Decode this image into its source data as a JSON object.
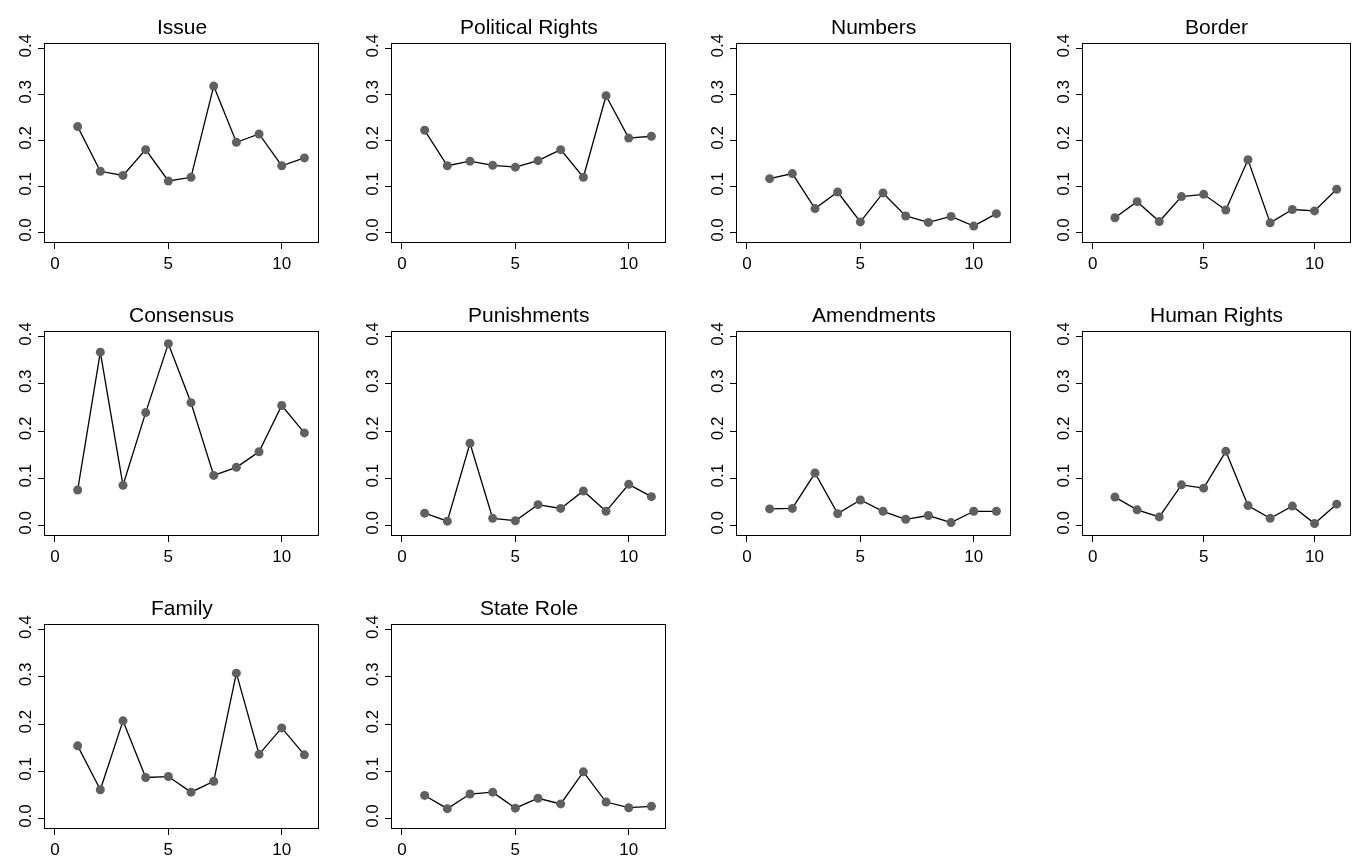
{
  "chart_data": [
    {
      "type": "line",
      "title": "Issue",
      "x": [
        1,
        2,
        3,
        4,
        5,
        6,
        7,
        8,
        9,
        10,
        11
      ],
      "values": [
        0.23,
        0.133,
        0.124,
        0.18,
        0.112,
        0.12,
        0.318,
        0.196,
        0.214,
        0.145,
        0.162
      ],
      "color": "#606060",
      "marker": "circle",
      "xlim": [
        -0.44,
        11.6
      ],
      "ylim": [
        -0.02,
        0.41
      ],
      "xticks": [
        0,
        5,
        10
      ],
      "yticks": [
        {
          "value": 0,
          "label": "0.0"
        },
        {
          "value": 0.1,
          "label": "0.1"
        },
        {
          "value": 0.2,
          "label": "0.2"
        },
        {
          "value": 0.3,
          "label": "0.3"
        },
        {
          "value": 0.4,
          "label": "0.4"
        }
      ]
    },
    {
      "type": "line",
      "title": "Political Rights",
      "x": [
        1,
        2,
        3,
        4,
        5,
        6,
        7,
        8,
        9,
        10,
        11
      ],
      "values": [
        0.222,
        0.145,
        0.155,
        0.146,
        0.142,
        0.156,
        0.18,
        0.12,
        0.297,
        0.205,
        0.209
      ],
      "color": "#606060",
      "marker": "circle",
      "xlim": [
        -0.44,
        11.6
      ],
      "ylim": [
        -0.02,
        0.41
      ],
      "xticks": [
        0,
        5,
        10
      ],
      "yticks": [
        {
          "value": 0,
          "label": "0.0"
        },
        {
          "value": 0.1,
          "label": "0.1"
        },
        {
          "value": 0.2,
          "label": "0.2"
        },
        {
          "value": 0.3,
          "label": "0.3"
        },
        {
          "value": 0.4,
          "label": "0.4"
        }
      ]
    },
    {
      "type": "line",
      "title": "Numbers",
      "x": [
        1,
        2,
        3,
        4,
        5,
        6,
        7,
        8,
        9,
        10,
        11
      ],
      "values": [
        0.117,
        0.128,
        0.052,
        0.088,
        0.023,
        0.086,
        0.036,
        0.022,
        0.035,
        0.014,
        0.041
      ],
      "color": "#606060",
      "marker": "circle",
      "xlim": [
        -0.44,
        11.6
      ],
      "ylim": [
        -0.02,
        0.41
      ],
      "xticks": [
        0,
        5,
        10
      ],
      "yticks": [
        {
          "value": 0,
          "label": "0.0"
        },
        {
          "value": 0.1,
          "label": "0.1"
        },
        {
          "value": 0.2,
          "label": "0.2"
        },
        {
          "value": 0.3,
          "label": "0.3"
        },
        {
          "value": 0.4,
          "label": "0.4"
        }
      ]
    },
    {
      "type": "line",
      "title": "Border",
      "x": [
        1,
        2,
        3,
        4,
        5,
        6,
        7,
        8,
        9,
        10,
        11
      ],
      "values": [
        0.032,
        0.067,
        0.024,
        0.078,
        0.083,
        0.049,
        0.158,
        0.021,
        0.05,
        0.047,
        0.094
      ],
      "color": "#606060",
      "marker": "circle",
      "xlim": [
        -0.44,
        11.6
      ],
      "ylim": [
        -0.02,
        0.41
      ],
      "xticks": [
        0,
        5,
        10
      ],
      "yticks": [
        {
          "value": 0,
          "label": "0.0"
        },
        {
          "value": 0.1,
          "label": "0.1"
        },
        {
          "value": 0.2,
          "label": "0.2"
        },
        {
          "value": 0.3,
          "label": "0.3"
        },
        {
          "value": 0.4,
          "label": "0.4"
        }
      ]
    },
    {
      "type": "line",
      "title": "Consensus",
      "x": [
        1,
        2,
        3,
        4,
        5,
        6,
        7,
        8,
        9,
        10,
        11
      ],
      "values": [
        0.075,
        0.367,
        0.085,
        0.239,
        0.385,
        0.26,
        0.106,
        0.123,
        0.156,
        0.254,
        0.196
      ],
      "color": "#606060",
      "marker": "circle",
      "xlim": [
        -0.44,
        11.6
      ],
      "ylim": [
        -0.02,
        0.41
      ],
      "xticks": [
        0,
        5,
        10
      ],
      "yticks": [
        {
          "value": 0,
          "label": "0.0"
        },
        {
          "value": 0.1,
          "label": "0.1"
        },
        {
          "value": 0.2,
          "label": "0.2"
        },
        {
          "value": 0.3,
          "label": "0.3"
        },
        {
          "value": 0.4,
          "label": "0.4"
        }
      ]
    },
    {
      "type": "line",
      "title": "Punishments",
      "x": [
        1,
        2,
        3,
        4,
        5,
        6,
        7,
        8,
        9,
        10,
        11
      ],
      "values": [
        0.026,
        0.009,
        0.174,
        0.015,
        0.01,
        0.044,
        0.036,
        0.073,
        0.03,
        0.087,
        0.061
      ],
      "color": "#606060",
      "marker": "circle",
      "xlim": [
        -0.44,
        11.6
      ],
      "ylim": [
        -0.02,
        0.41
      ],
      "xticks": [
        0,
        5,
        10
      ],
      "yticks": [
        {
          "value": 0,
          "label": "0.0"
        },
        {
          "value": 0.1,
          "label": "0.1"
        },
        {
          "value": 0.2,
          "label": "0.2"
        },
        {
          "value": 0.3,
          "label": "0.3"
        },
        {
          "value": 0.4,
          "label": "0.4"
        }
      ]
    },
    {
      "type": "line",
      "title": "Amendments",
      "x": [
        1,
        2,
        3,
        4,
        5,
        6,
        7,
        8,
        9,
        10,
        11
      ],
      "values": [
        0.035,
        0.036,
        0.111,
        0.025,
        0.054,
        0.03,
        0.013,
        0.021,
        0.006,
        0.03,
        0.03
      ],
      "color": "#606060",
      "marker": "circle",
      "xlim": [
        -0.44,
        11.6
      ],
      "ylim": [
        -0.02,
        0.41
      ],
      "xticks": [
        0,
        5,
        10
      ],
      "yticks": [
        {
          "value": 0,
          "label": "0.0"
        },
        {
          "value": 0.1,
          "label": "0.1"
        },
        {
          "value": 0.2,
          "label": "0.2"
        },
        {
          "value": 0.3,
          "label": "0.3"
        },
        {
          "value": 0.4,
          "label": "0.4"
        }
      ]
    },
    {
      "type": "line",
      "title": "Human Rights",
      "x": [
        1,
        2,
        3,
        4,
        5,
        6,
        7,
        8,
        9,
        10,
        11
      ],
      "values": [
        0.06,
        0.033,
        0.018,
        0.086,
        0.079,
        0.157,
        0.042,
        0.015,
        0.041,
        0.004,
        0.045
      ],
      "color": "#606060",
      "marker": "circle",
      "xlim": [
        -0.44,
        11.6
      ],
      "ylim": [
        -0.02,
        0.41
      ],
      "xticks": [
        0,
        5,
        10
      ],
      "yticks": [
        {
          "value": 0,
          "label": "0.0"
        },
        {
          "value": 0.1,
          "label": "0.1"
        },
        {
          "value": 0.2,
          "label": "0.2"
        },
        {
          "value": 0.3,
          "label": "0.3"
        },
        {
          "value": 0.4,
          "label": "0.4"
        }
      ]
    },
    {
      "type": "line",
      "title": "Family",
      "x": [
        1,
        2,
        3,
        4,
        5,
        6,
        7,
        8,
        9,
        10,
        11
      ],
      "values": [
        0.154,
        0.061,
        0.207,
        0.087,
        0.089,
        0.056,
        0.079,
        0.308,
        0.136,
        0.192,
        0.135
      ],
      "color": "#606060",
      "marker": "circle",
      "xlim": [
        -0.44,
        11.6
      ],
      "ylim": [
        -0.02,
        0.41
      ],
      "xticks": [
        0,
        5,
        10
      ],
      "yticks": [
        {
          "value": 0,
          "label": "0.0"
        },
        {
          "value": 0.1,
          "label": "0.1"
        },
        {
          "value": 0.2,
          "label": "0.2"
        },
        {
          "value": 0.3,
          "label": "0.3"
        },
        {
          "value": 0.4,
          "label": "0.4"
        }
      ]
    },
    {
      "type": "line",
      "title": "State Role",
      "x": [
        1,
        2,
        3,
        4,
        5,
        6,
        7,
        8,
        9,
        10,
        11
      ],
      "values": [
        0.049,
        0.021,
        0.052,
        0.056,
        0.022,
        0.043,
        0.031,
        0.099,
        0.035,
        0.023,
        0.026
      ],
      "color": "#606060",
      "marker": "circle",
      "xlim": [
        -0.44,
        11.6
      ],
      "ylim": [
        -0.02,
        0.41
      ],
      "xticks": [
        0,
        5,
        10
      ],
      "yticks": [
        {
          "value": 0,
          "label": "0.0"
        },
        {
          "value": 0.1,
          "label": "0.1"
        },
        {
          "value": 0.2,
          "label": "0.2"
        },
        {
          "value": 0.3,
          "label": "0.3"
        },
        {
          "value": 0.4,
          "label": "0.4"
        }
      ]
    }
  ]
}
